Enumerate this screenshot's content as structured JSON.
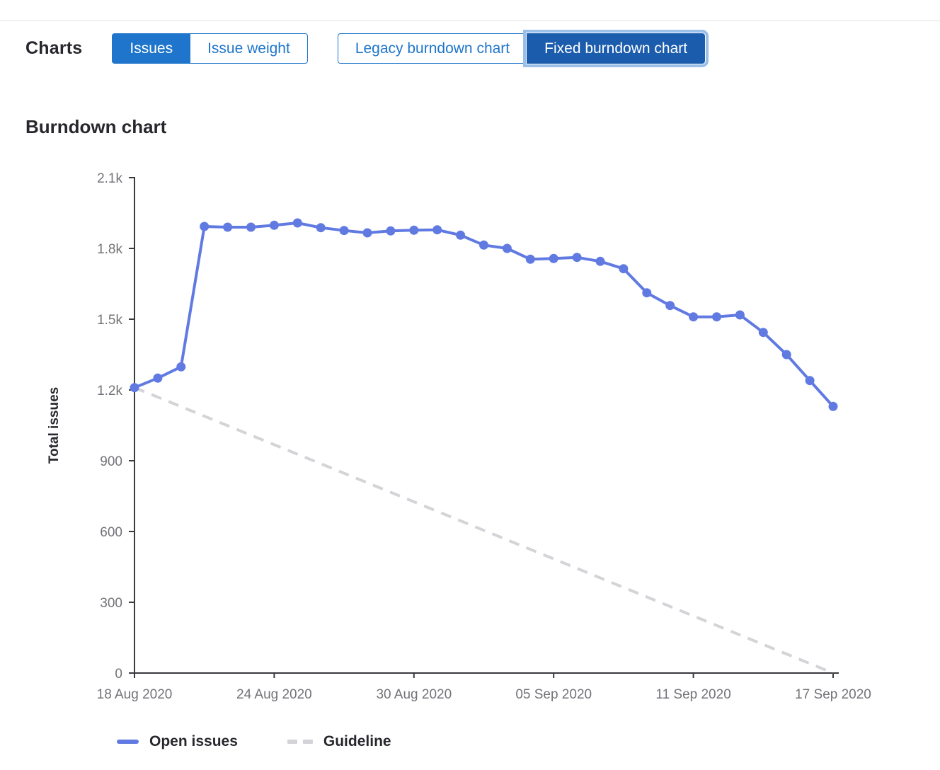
{
  "header": {
    "title": "Charts",
    "chart_type_toggle": [
      {
        "label": "Issues",
        "active": true
      },
      {
        "label": "Issue weight",
        "active": false
      }
    ],
    "chart_version_toggle": [
      {
        "label": "Legacy burndown chart",
        "active": false
      },
      {
        "label": "Fixed burndown chart",
        "active": true
      }
    ]
  },
  "section_title": "Burndown chart",
  "colors": {
    "accent_blue": "#1f75cb",
    "selected_dark_blue": "#1b5cad",
    "open_issues_line": "#617ae2",
    "guideline_gray": "#d4d4d8",
    "axis": "#3a3a3f",
    "tick_text": "#737278"
  },
  "chart_data": {
    "type": "line",
    "title": "Burndown chart",
    "ylabel": "Total issues",
    "xlabel": "",
    "ylim": [
      0,
      2100
    ],
    "days_total": 30,
    "grid": false,
    "legend_position": "bottom",
    "y_ticks": [
      {
        "value": 0,
        "label": "0"
      },
      {
        "value": 300,
        "label": "300"
      },
      {
        "value": 600,
        "label": "600"
      },
      {
        "value": 900,
        "label": "900"
      },
      {
        "value": 1200,
        "label": "1.2k"
      },
      {
        "value": 1500,
        "label": "1.5k"
      },
      {
        "value": 1800,
        "label": "1.8k"
      },
      {
        "value": 2100,
        "label": "2.1k"
      }
    ],
    "x_ticks": [
      {
        "day": 0,
        "label": "18 Aug 2020"
      },
      {
        "day": 6,
        "label": "24 Aug 2020"
      },
      {
        "day": 12,
        "label": "30 Aug 2020"
      },
      {
        "day": 18,
        "label": "05 Sep 2020"
      },
      {
        "day": 24,
        "label": "11 Sep 2020"
      },
      {
        "day": 30,
        "label": "17 Sep 2020"
      }
    ],
    "series": [
      {
        "name": "Open issues",
        "type": "line",
        "style": "solid",
        "color": "#617ae2",
        "values": [
          1210,
          1250,
          1298,
          1893,
          1890,
          1890,
          1898,
          1908,
          1888,
          1876,
          1866,
          1874,
          1877,
          1879,
          1856,
          1814,
          1800,
          1754,
          1757,
          1762,
          1745,
          1714,
          1612,
          1558,
          1510,
          1510,
          1518,
          1444,
          1350,
          1240,
          1130
        ]
      },
      {
        "name": "Guideline",
        "type": "line",
        "style": "dashed",
        "color": "#d4d4d8",
        "x": [
          0,
          30
        ],
        "values": [
          1210,
          0
        ]
      }
    ]
  }
}
